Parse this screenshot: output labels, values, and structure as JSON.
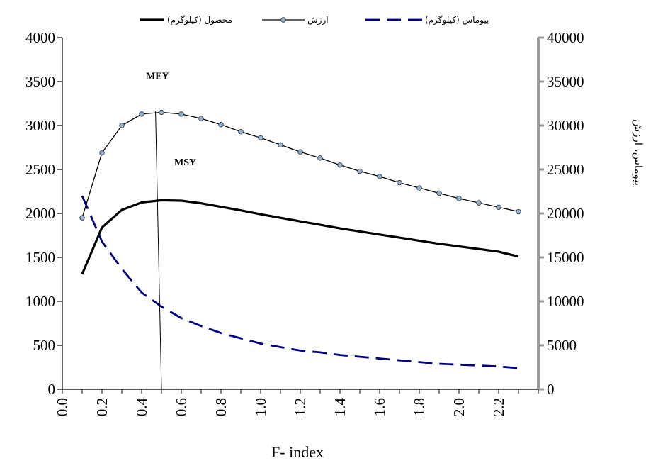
{
  "chart_data": {
    "type": "line",
    "xlabel": "F- index",
    "ylabel_right": "بیوماس، ارزش",
    "xlim": [
      0,
      2.4
    ],
    "ylim_left": [
      0,
      4000
    ],
    "ylim_right": [
      0,
      40000
    ],
    "x_ticks": [
      "0.0",
      "0.2",
      "0.4",
      "0.6",
      "0.8",
      "1.0",
      "1.2",
      "1.4",
      "1.6",
      "1.8",
      "2.0",
      "2.2"
    ],
    "y_left_ticks": [
      "0",
      "500",
      "1000",
      "1500",
      "2000",
      "2500",
      "3000",
      "3500",
      "4000"
    ],
    "y_right_ticks": [
      "0",
      "5000",
      "10000",
      "15000",
      "20000",
      "25000",
      "30000",
      "35000",
      "40000"
    ],
    "legend_position": "top",
    "x": [
      0.1,
      0.2,
      0.3,
      0.4,
      0.5,
      0.6,
      0.7,
      0.8,
      0.9,
      1.0,
      1.1,
      1.2,
      1.3,
      1.4,
      1.5,
      1.6,
      1.7,
      1.8,
      1.9,
      2.0,
      2.1,
      2.2,
      2.3
    ],
    "series": [
      {
        "name": "محصول (کیلوگرم)",
        "axis": "left",
        "style": "solid-thick",
        "color": "#000000",
        "values": [
          1310,
          1840,
          2040,
          2125,
          2150,
          2145,
          2115,
          2075,
          2035,
          1990,
          1950,
          1910,
          1870,
          1830,
          1795,
          1760,
          1725,
          1690,
          1655,
          1625,
          1595,
          1565,
          1510
        ]
      },
      {
        "name": "ارزش",
        "axis": "right",
        "style": "line-markers",
        "color": "#000000",
        "marker_color": "#8fb0d0",
        "values": [
          19500,
          26900,
          30000,
          31300,
          31500,
          31300,
          30800,
          30100,
          29300,
          28600,
          27800,
          27000,
          26300,
          25500,
          24800,
          24200,
          23500,
          22900,
          22300,
          21700,
          21200,
          20700,
          20200
        ]
      },
      {
        "name": "بیوماس (کیلوگرم)",
        "axis": "right",
        "style": "dashed",
        "color": "#000080",
        "values": [
          22000,
          16800,
          13700,
          11000,
          9400,
          8100,
          7200,
          6400,
          5800,
          5200,
          4800,
          4400,
          4200,
          3900,
          3700,
          3500,
          3300,
          3100,
          2900,
          2800,
          2700,
          2600,
          2400
        ]
      }
    ],
    "annotations": [
      {
        "text": "MEY",
        "x": 0.48,
        "y": 3530
      },
      {
        "text": "MSY",
        "x": 0.62,
        "y": 2550
      }
    ],
    "reference_line": {
      "from": [
        0.47,
        3160
      ],
      "to": [
        0.5,
        0
      ]
    }
  }
}
